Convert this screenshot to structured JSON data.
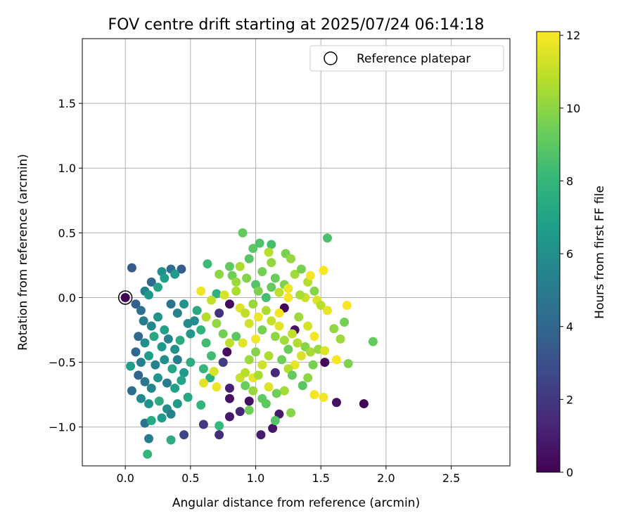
{
  "chart_data": {
    "type": "scatter",
    "title": "FOV centre drift starting at 2025/07/24 06:14:18",
    "xlabel": "Angular distance from reference (arcmin)",
    "ylabel": "Rotation from reference (arcmin)",
    "xlim": [
      -0.33,
      2.95
    ],
    "ylim": [
      -1.3,
      2.0
    ],
    "xticks": [
      {
        "v": 0.0,
        "label": "0.0"
      },
      {
        "v": 0.5,
        "label": "0.5"
      },
      {
        "v": 1.0,
        "label": "1.0"
      },
      {
        "v": 1.5,
        "label": "1.5"
      },
      {
        "v": 2.0,
        "label": "2.0"
      },
      {
        "v": 2.5,
        "label": "2.5"
      }
    ],
    "yticks": [
      {
        "v": -1.0,
        "label": "−1.0"
      },
      {
        "v": -0.5,
        "label": "−0.5"
      },
      {
        "v": 0.0,
        "label": "0.0"
      },
      {
        "v": 0.5,
        "label": "0.5"
      },
      {
        "v": 1.0,
        "label": "1.0"
      },
      {
        "v": 1.5,
        "label": "1.5"
      }
    ],
    "grid": true,
    "legend": {
      "position": "top-right",
      "entries": [
        {
          "label": "Reference platepar",
          "marker": "open-circle"
        }
      ]
    },
    "reference_point": {
      "x": 0.0,
      "y": 0.0,
      "c": 0.0
    },
    "colorbar": {
      "label": "Hours from first FF file",
      "range": [
        0,
        12.1
      ],
      "ticks": [
        {
          "v": 0,
          "label": "0"
        },
        {
          "v": 2,
          "label": "2"
        },
        {
          "v": 4,
          "label": "4"
        },
        {
          "v": 6,
          "label": "6"
        },
        {
          "v": 8,
          "label": "8"
        },
        {
          "v": 10,
          "label": "10"
        },
        {
          "v": 12,
          "label": "12"
        }
      ],
      "colormap": "viridis",
      "colormap_stops": [
        "#440154",
        "#482878",
        "#3e4989",
        "#31688e",
        "#26828e",
        "#1f9e89",
        "#35b779",
        "#6ece58",
        "#b5de2b",
        "#fde725"
      ]
    },
    "points": [
      {
        "x": 0.05,
        "y": 0.23,
        "c": 3.5
      },
      {
        "x": 0.15,
        "y": 0.05,
        "c": 5.2
      },
      {
        "x": 0.2,
        "y": 0.12,
        "c": 4.1
      },
      {
        "x": 0.18,
        "y": 0.02,
        "c": 6.5
      },
      {
        "x": 0.28,
        "y": 0.2,
        "c": 6.0
      },
      {
        "x": 0.35,
        "y": 0.22,
        "c": 4.3
      },
      {
        "x": 0.43,
        "y": 0.22,
        "c": 3.6
      },
      {
        "x": 0.3,
        "y": 0.15,
        "c": 6.8
      },
      {
        "x": 0.25,
        "y": 0.08,
        "c": 7.0
      },
      {
        "x": 0.38,
        "y": 0.18,
        "c": 6.6
      },
      {
        "x": 0.08,
        "y": -0.05,
        "c": 3.8
      },
      {
        "x": 0.12,
        "y": -0.1,
        "c": 4.5
      },
      {
        "x": 0.14,
        "y": -0.18,
        "c": 5.0
      },
      {
        "x": 0.2,
        "y": -0.22,
        "c": 5.6
      },
      {
        "x": 0.25,
        "y": -0.15,
        "c": 6.2
      },
      {
        "x": 0.3,
        "y": -0.25,
        "c": 6.9
      },
      {
        "x": 0.35,
        "y": -0.05,
        "c": 4.6
      },
      {
        "x": 0.4,
        "y": -0.12,
        "c": 5.3
      },
      {
        "x": 0.45,
        "y": -0.05,
        "c": 6.3
      },
      {
        "x": 0.48,
        "y": -0.2,
        "c": 5.8
      },
      {
        "x": 0.1,
        "y": -0.3,
        "c": 4.2
      },
      {
        "x": 0.15,
        "y": -0.35,
        "c": 6.0
      },
      {
        "x": 0.22,
        "y": -0.3,
        "c": 7.2
      },
      {
        "x": 0.28,
        "y": -0.38,
        "c": 6.5
      },
      {
        "x": 0.33,
        "y": -0.32,
        "c": 5.5
      },
      {
        "x": 0.38,
        "y": -0.4,
        "c": 6.1
      },
      {
        "x": 0.42,
        "y": -0.33,
        "c": 7.4
      },
      {
        "x": 0.5,
        "y": -0.28,
        "c": 6.4
      },
      {
        "x": 0.53,
        "y": -0.18,
        "c": 5.9
      },
      {
        "x": 0.55,
        "y": -0.1,
        "c": 7.3
      },
      {
        "x": 0.08,
        "y": -0.42,
        "c": 4.0
      },
      {
        "x": 0.12,
        "y": -0.5,
        "c": 5.2
      },
      {
        "x": 0.18,
        "y": -0.45,
        "c": 6.7
      },
      {
        "x": 0.23,
        "y": -0.52,
        "c": 5.4
      },
      {
        "x": 0.3,
        "y": -0.48,
        "c": 6.0
      },
      {
        "x": 0.36,
        "y": -0.55,
        "c": 7.1
      },
      {
        "x": 0.4,
        "y": -0.48,
        "c": 5.0
      },
      {
        "x": 0.45,
        "y": -0.58,
        "c": 6.6
      },
      {
        "x": 0.5,
        "y": -0.5,
        "c": 7.5
      },
      {
        "x": 0.04,
        "y": -0.53,
        "c": 6.8
      },
      {
        "x": 0.1,
        "y": -0.6,
        "c": 3.9
      },
      {
        "x": 0.15,
        "y": -0.65,
        "c": 4.8
      },
      {
        "x": 0.2,
        "y": -0.7,
        "c": 5.5
      },
      {
        "x": 0.25,
        "y": -0.62,
        "c": 6.3
      },
      {
        "x": 0.32,
        "y": -0.66,
        "c": 5.1
      },
      {
        "x": 0.38,
        "y": -0.7,
        "c": 6.9
      },
      {
        "x": 0.43,
        "y": -0.64,
        "c": 7.0
      },
      {
        "x": 0.05,
        "y": -0.72,
        "c": 4.4
      },
      {
        "x": 0.12,
        "y": -0.78,
        "c": 5.7
      },
      {
        "x": 0.18,
        "y": -0.82,
        "c": 6.2
      },
      {
        "x": 0.26,
        "y": -0.8,
        "c": 7.4
      },
      {
        "x": 0.32,
        "y": -0.86,
        "c": 5.9
      },
      {
        "x": 0.4,
        "y": -0.82,
        "c": 6.5
      },
      {
        "x": 0.48,
        "y": -0.77,
        "c": 7.2
      },
      {
        "x": 0.15,
        "y": -0.97,
        "c": 4.6
      },
      {
        "x": 0.2,
        "y": -0.95,
        "c": 7.3
      },
      {
        "x": 0.28,
        "y": -0.93,
        "c": 6.6
      },
      {
        "x": 0.35,
        "y": -0.9,
        "c": 5.3
      },
      {
        "x": 0.18,
        "y": -1.09,
        "c": 5.1
      },
      {
        "x": 0.35,
        "y": -1.1,
        "c": 7.5
      },
      {
        "x": 0.17,
        "y": -1.21,
        "c": 7.9
      },
      {
        "x": 0.45,
        "y": -1.06,
        "c": 2.5
      },
      {
        "x": 0.58,
        "y": -0.25,
        "c": 7.8
      },
      {
        "x": 0.62,
        "y": -0.35,
        "c": 8.3
      },
      {
        "x": 0.6,
        "y": -0.55,
        "c": 8.0
      },
      {
        "x": 0.65,
        "y": -0.62,
        "c": 7.6
      },
      {
        "x": 0.58,
        "y": -0.83,
        "c": 7.9
      },
      {
        "x": 0.63,
        "y": 0.26,
        "c": 8.2
      },
      {
        "x": 0.7,
        "y": 0.03,
        "c": 7.7
      },
      {
        "x": 0.66,
        "y": -0.45,
        "c": 8.4
      },
      {
        "x": 0.72,
        "y": -0.99,
        "c": 8.1
      },
      {
        "x": 0.6,
        "y": -0.98,
        "c": 2.0
      },
      {
        "x": 0.72,
        "y": -1.06,
        "c": 1.5
      },
      {
        "x": 0.8,
        "y": -0.92,
        "c": 0.8
      },
      {
        "x": 0.88,
        "y": -0.88,
        "c": 1.2
      },
      {
        "x": 0.95,
        "y": -0.8,
        "c": 0.5
      },
      {
        "x": 0.8,
        "y": -0.7,
        "c": 1.1
      },
      {
        "x": 0.78,
        "y": -0.42,
        "c": 0.4
      },
      {
        "x": 0.75,
        "y": -0.5,
        "c": 2.2
      },
      {
        "x": 0.72,
        "y": -0.12,
        "c": 1.8
      },
      {
        "x": 0.8,
        "y": -0.05,
        "c": 0.3
      },
      {
        "x": 1.04,
        "y": -1.06,
        "c": 1.0
      },
      {
        "x": 1.13,
        "y": -1.01,
        "c": 0.7
      },
      {
        "x": 1.18,
        "y": -0.9,
        "c": 0.9
      },
      {
        "x": 1.3,
        "y": -0.25,
        "c": 0.6
      },
      {
        "x": 1.22,
        "y": -0.08,
        "c": 0.2
      },
      {
        "x": 1.15,
        "y": -0.58,
        "c": 1.4
      },
      {
        "x": 1.53,
        "y": -0.5,
        "c": 0.3
      },
      {
        "x": 1.62,
        "y": -0.81,
        "c": 0.5
      },
      {
        "x": 1.83,
        "y": -0.82,
        "c": 0.1
      },
      {
        "x": 0.8,
        "y": -0.78,
        "c": 0.6
      },
      {
        "x": 0.9,
        "y": 0.5,
        "c": 9.2
      },
      {
        "x": 0.98,
        "y": 0.38,
        "c": 9.0
      },
      {
        "x": 1.03,
        "y": 0.42,
        "c": 8.7
      },
      {
        "x": 1.12,
        "y": 0.41,
        "c": 8.5
      },
      {
        "x": 1.1,
        "y": 0.35,
        "c": 10.8
      },
      {
        "x": 1.23,
        "y": 0.34,
        "c": 9.6
      },
      {
        "x": 1.27,
        "y": 0.3,
        "c": 10.2
      },
      {
        "x": 1.55,
        "y": 0.46,
        "c": 8.6
      },
      {
        "x": 0.72,
        "y": 0.18,
        "c": 10.0
      },
      {
        "x": 0.8,
        "y": 0.24,
        "c": 9.1
      },
      {
        "x": 0.88,
        "y": 0.24,
        "c": 10.6
      },
      {
        "x": 0.95,
        "y": 0.3,
        "c": 8.9
      },
      {
        "x": 0.82,
        "y": 0.17,
        "c": 9.4
      },
      {
        "x": 0.85,
        "y": 0.12,
        "c": 10.3
      },
      {
        "x": 0.93,
        "y": 0.15,
        "c": 9.8
      },
      {
        "x": 1.0,
        "y": 0.1,
        "c": 8.8
      },
      {
        "x": 1.05,
        "y": 0.2,
        "c": 9.5
      },
      {
        "x": 1.12,
        "y": 0.27,
        "c": 10.1
      },
      {
        "x": 1.15,
        "y": 0.15,
        "c": 9.3
      },
      {
        "x": 1.18,
        "y": 0.04,
        "c": 10.9
      },
      {
        "x": 1.22,
        "y": 0.1,
        "c": 9.7
      },
      {
        "x": 1.25,
        "y": 0.07,
        "c": 11.8
      },
      {
        "x": 1.3,
        "y": 0.18,
        "c": 10.4
      },
      {
        "x": 1.35,
        "y": 0.22,
        "c": 9.6
      },
      {
        "x": 1.4,
        "y": 0.12,
        "c": 10.7
      },
      {
        "x": 1.42,
        "y": 0.17,
        "c": 11.9
      },
      {
        "x": 1.45,
        "y": 0.05,
        "c": 9.9
      },
      {
        "x": 1.38,
        "y": 0.0,
        "c": 11.2
      },
      {
        "x": 1.34,
        "y": 0.02,
        "c": 10.5
      },
      {
        "x": 1.52,
        "y": 0.21,
        "c": 12.0
      },
      {
        "x": 1.47,
        "y": -0.02,
        "c": 11.5
      },
      {
        "x": 1.5,
        "y": -0.06,
        "c": 10.8
      },
      {
        "x": 1.55,
        "y": -0.1,
        "c": 11.7
      },
      {
        "x": 1.6,
        "y": -0.24,
        "c": 10.1
      },
      {
        "x": 1.68,
        "y": -0.19,
        "c": 9.5
      },
      {
        "x": 1.7,
        "y": -0.06,
        "c": 12.0
      },
      {
        "x": 1.65,
        "y": -0.32,
        "c": 10.3
      },
      {
        "x": 1.9,
        "y": -0.34,
        "c": 9.2
      },
      {
        "x": 1.71,
        "y": -0.51,
        "c": 9.7
      },
      {
        "x": 1.62,
        "y": -0.48,
        "c": 12.0
      },
      {
        "x": 0.88,
        "y": -0.08,
        "c": 11.5
      },
      {
        "x": 0.92,
        "y": -0.12,
        "c": 10.9
      },
      {
        "x": 0.95,
        "y": -0.2,
        "c": 11.3
      },
      {
        "x": 0.98,
        "y": -0.05,
        "c": 10.2
      },
      {
        "x": 1.02,
        "y": -0.15,
        "c": 11.8
      },
      {
        "x": 1.05,
        "y": -0.25,
        "c": 9.6
      },
      {
        "x": 1.08,
        "y": -0.1,
        "c": 10.6
      },
      {
        "x": 1.12,
        "y": -0.18,
        "c": 11.1
      },
      {
        "x": 1.15,
        "y": -0.3,
        "c": 10.0
      },
      {
        "x": 1.18,
        "y": -0.22,
        "c": 11.6
      },
      {
        "x": 1.22,
        "y": -0.33,
        "c": 10.4
      },
      {
        "x": 1.25,
        "y": -0.4,
        "c": 9.3
      },
      {
        "x": 1.28,
        "y": -0.28,
        "c": 11.0
      },
      {
        "x": 1.32,
        "y": -0.35,
        "c": 10.7
      },
      {
        "x": 1.35,
        "y": -0.45,
        "c": 11.4
      },
      {
        "x": 1.38,
        "y": -0.38,
        "c": 9.9
      },
      {
        "x": 1.42,
        "y": -0.42,
        "c": 10.5
      },
      {
        "x": 1.45,
        "y": -0.3,
        "c": 11.9
      },
      {
        "x": 1.48,
        "y": -0.4,
        "c": 10.2
      },
      {
        "x": 1.3,
        "y": -0.52,
        "c": 11.7
      },
      {
        "x": 1.25,
        "y": -0.55,
        "c": 10.8
      },
      {
        "x": 1.2,
        "y": -0.48,
        "c": 9.4
      },
      {
        "x": 1.1,
        "y": -0.45,
        "c": 10.6
      },
      {
        "x": 1.05,
        "y": -0.52,
        "c": 11.2
      },
      {
        "x": 1.0,
        "y": -0.42,
        "c": 9.8
      },
      {
        "x": 0.95,
        "y": -0.48,
        "c": 10.3
      },
      {
        "x": 0.9,
        "y": -0.35,
        "c": 11.6
      },
      {
        "x": 0.85,
        "y": -0.3,
        "c": 9.0
      },
      {
        "x": 0.8,
        "y": -0.35,
        "c": 10.9
      },
      {
        "x": 0.75,
        "y": -0.28,
        "c": 9.5
      },
      {
        "x": 0.7,
        "y": -0.2,
        "c": 10.1
      },
      {
        "x": 0.62,
        "y": -0.15,
        "c": 10.7
      },
      {
        "x": 0.58,
        "y": 0.05,
        "c": 11.8
      },
      {
        "x": 0.66,
        "y": -0.02,
        "c": 11.0
      },
      {
        "x": 0.76,
        "y": 0.02,
        "c": 11.4
      },
      {
        "x": 0.85,
        "y": 0.05,
        "c": 10.6
      },
      {
        "x": 1.25,
        "y": 0.0,
        "c": 12.0
      },
      {
        "x": 1.18,
        "y": -0.12,
        "c": 11.9
      },
      {
        "x": 1.33,
        "y": -0.15,
        "c": 10.3
      },
      {
        "x": 1.4,
        "y": -0.22,
        "c": 11.3
      },
      {
        "x": 1.44,
        "y": -0.52,
        "c": 9.6
      },
      {
        "x": 1.4,
        "y": -0.62,
        "c": 10.0
      },
      {
        "x": 1.36,
        "y": -0.68,
        "c": 8.9
      },
      {
        "x": 1.28,
        "y": -0.6,
        "c": 9.2
      },
      {
        "x": 1.22,
        "y": -0.72,
        "c": 10.4
      },
      {
        "x": 1.16,
        "y": -0.74,
        "c": 9.4
      },
      {
        "x": 1.1,
        "y": -0.69,
        "c": 11.5
      },
      {
        "x": 1.05,
        "y": -0.78,
        "c": 9.1
      },
      {
        "x": 0.98,
        "y": -0.72,
        "c": 10.2
      },
      {
        "x": 0.92,
        "y": -0.68,
        "c": 9.3
      },
      {
        "x": 0.88,
        "y": -0.62,
        "c": 11.1
      },
      {
        "x": 0.92,
        "y": -0.58,
        "c": 10.8
      },
      {
        "x": 0.98,
        "y": -0.62,
        "c": 11.7
      },
      {
        "x": 1.02,
        "y": -0.6,
        "c": 10.5
      },
      {
        "x": 1.15,
        "y": -0.95,
        "c": 8.8
      },
      {
        "x": 1.27,
        "y": -0.89,
        "c": 9.9
      },
      {
        "x": 1.45,
        "y": -0.75,
        "c": 12.0
      },
      {
        "x": 1.52,
        "y": -0.77,
        "c": 11.9
      },
      {
        "x": 1.53,
        "y": -0.41,
        "c": 11.5
      },
      {
        "x": 0.6,
        "y": -0.66,
        "c": 11.6
      },
      {
        "x": 0.68,
        "y": -0.57,
        "c": 11.4
      },
      {
        "x": 0.7,
        "y": -0.69,
        "c": 11.8
      },
      {
        "x": 0.95,
        "y": -0.87,
        "c": 9.4
      },
      {
        "x": 1.08,
        "y": -0.82,
        "c": 9.0
      },
      {
        "x": 1.02,
        "y": 0.05,
        "c": 9.7
      },
      {
        "x": 1.08,
        "y": 0.0,
        "c": 8.5
      },
      {
        "x": 1.12,
        "y": 0.08,
        "c": 9.2
      },
      {
        "x": 1.0,
        "y": -0.32,
        "c": 11.9
      }
    ]
  }
}
